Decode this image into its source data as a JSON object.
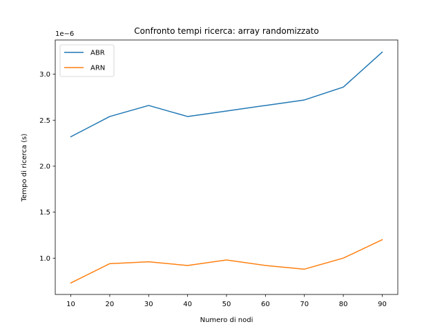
{
  "chart_data": {
    "type": "line",
    "title": "Confronto tempi ricerca: array randomizzato",
    "xlabel": "Numero di nodi",
    "ylabel": "Tempo di ricerca (s)",
    "y_offset_label": "1e−6",
    "x": [
      10,
      20,
      30,
      40,
      50,
      60,
      70,
      80,
      90
    ],
    "x_ticks": [
      "10",
      "20",
      "30",
      "40",
      "50",
      "60",
      "70",
      "80",
      "90"
    ],
    "y_ticks": [
      1.0,
      1.5,
      2.0,
      2.5,
      3.0
    ],
    "y_tick_labels": [
      "1.0",
      "1.5",
      "2.0",
      "2.5",
      "3.0"
    ],
    "xlim": [
      6,
      94
    ],
    "ylim": [
      0.605,
      3.372
    ],
    "y_scale": "×1e-6 seconds",
    "grid": false,
    "legend_position": "upper-left",
    "series": [
      {
        "name": "ABR",
        "color": "#1f77b4",
        "values": [
          2.32,
          2.54,
          2.66,
          2.54,
          2.6,
          2.66,
          2.72,
          2.86,
          3.24
        ]
      },
      {
        "name": "ARN",
        "color": "#ff7f0e",
        "values": [
          0.73,
          0.94,
          0.96,
          0.92,
          0.98,
          0.92,
          0.88,
          1.0,
          1.2
        ]
      }
    ]
  }
}
